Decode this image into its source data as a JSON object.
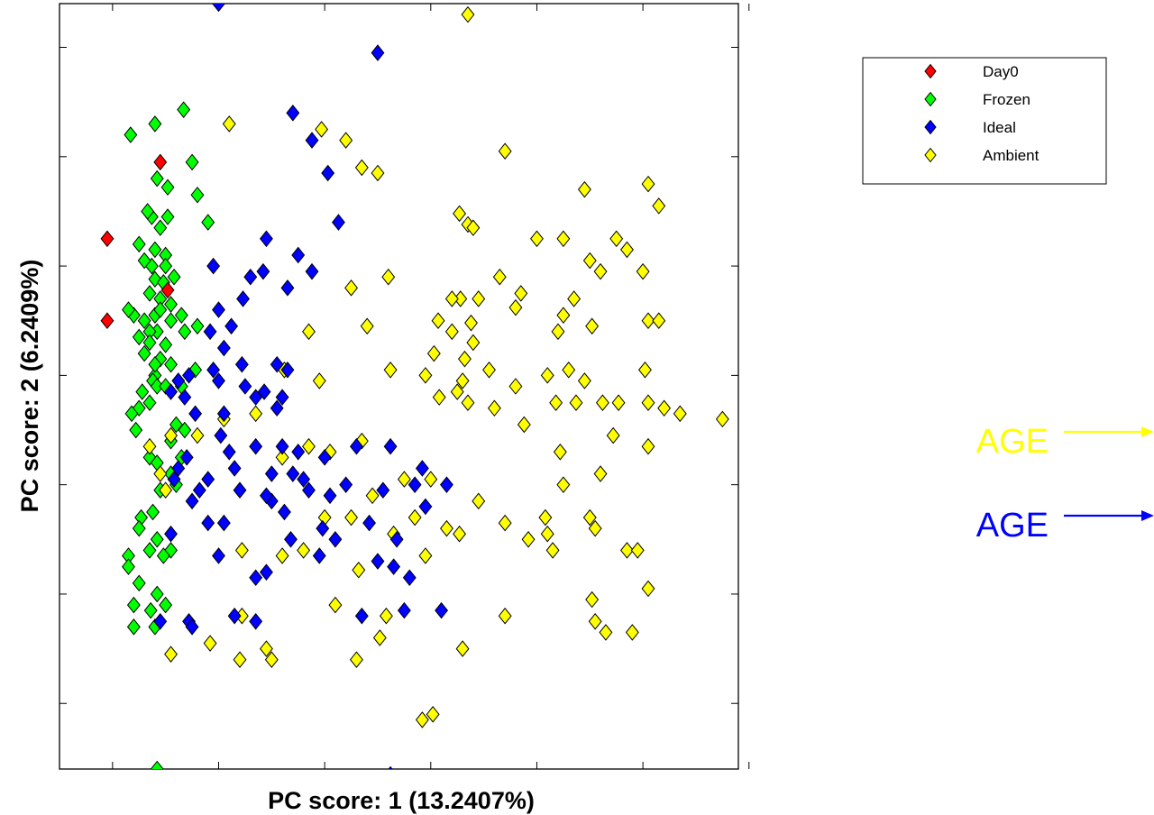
{
  "chart_data": {
    "type": "scatter",
    "title": "",
    "xlabel": "PC score: 1 (13.2407%)",
    "ylabel": "PC score: 2 (6.2409%)",
    "xlim": [
      -0.5,
      5.9
    ],
    "ylim": [
      -6.6,
      0.4
    ],
    "xticks": [
      0,
      1,
      2,
      3,
      4,
      5,
      6
    ],
    "yticks": [
      -6,
      -5,
      -4,
      -3,
      -2,
      -1,
      0
    ],
    "tick_labels_visible": false,
    "grid": false,
    "marker": "diamond",
    "legend": {
      "placement": "top-right",
      "entries": [
        "Day0",
        "Frozen",
        "Ideal",
        "Ambient"
      ]
    },
    "series": [
      {
        "name": "Day0",
        "color": "#ff0000",
        "points": [
          [
            -0.05,
            -2.5
          ],
          [
            0.45,
            -1.05
          ],
          [
            -0.05,
            -1.75
          ],
          [
            0.52,
            -2.22
          ]
        ]
      },
      {
        "name": "Frozen",
        "color": "#00ff00",
        "points": [
          [
            0.17,
            -0.8
          ],
          [
            0.4,
            -0.7
          ],
          [
            0.67,
            -0.57
          ],
          [
            0.42,
            -1.2
          ],
          [
            0.37,
            -1.55
          ],
          [
            0.52,
            -1.28
          ],
          [
            0.33,
            -1.5
          ],
          [
            0.37,
            -2.0
          ],
          [
            0.4,
            -2.12
          ],
          [
            0.45,
            -1.65
          ],
          [
            0.25,
            -1.8
          ],
          [
            0.3,
            -1.95
          ],
          [
            0.4,
            -1.85
          ],
          [
            0.5,
            -1.9
          ],
          [
            0.35,
            -2.25
          ],
          [
            0.5,
            -2.0
          ],
          [
            0.45,
            -2.3
          ],
          [
            0.3,
            -2.5
          ],
          [
            0.2,
            -2.45
          ],
          [
            0.4,
            -2.45
          ],
          [
            0.15,
            -2.4
          ],
          [
            0.55,
            -2.35
          ],
          [
            0.25,
            -2.65
          ],
          [
            0.42,
            -2.6
          ],
          [
            0.65,
            -2.45
          ],
          [
            0.35,
            -2.6
          ],
          [
            0.35,
            -2.7
          ],
          [
            0.5,
            -2.72
          ],
          [
            0.3,
            -2.8
          ],
          [
            0.45,
            -2.85
          ],
          [
            0.4,
            -3.0
          ],
          [
            0.4,
            -2.9
          ],
          [
            0.55,
            -2.9
          ],
          [
            0.38,
            -3.05
          ],
          [
            0.42,
            -3.1
          ],
          [
            0.5,
            -3.1
          ],
          [
            0.28,
            -3.15
          ],
          [
            0.35,
            -3.25
          ],
          [
            0.25,
            -3.3
          ],
          [
            0.18,
            -3.35
          ],
          [
            0.22,
            -3.5
          ],
          [
            0.6,
            -3.45
          ],
          [
            0.68,
            -3.5
          ],
          [
            0.55,
            -3.6
          ],
          [
            0.65,
            -3.1
          ],
          [
            0.35,
            -3.75
          ],
          [
            0.65,
            -3.75
          ],
          [
            0.42,
            -3.8
          ],
          [
            0.45,
            -4.05
          ],
          [
            0.55,
            -3.9
          ],
          [
            0.6,
            -4.0
          ],
          [
            0.38,
            -4.25
          ],
          [
            0.27,
            -4.3
          ],
          [
            0.25,
            -4.4
          ],
          [
            0.15,
            -4.65
          ],
          [
            0.35,
            -4.6
          ],
          [
            0.55,
            -4.6
          ],
          [
            0.42,
            -4.5
          ],
          [
            0.48,
            -4.65
          ],
          [
            0.42,
            -5.0
          ],
          [
            0.15,
            -4.75
          ],
          [
            0.25,
            -4.9
          ],
          [
            0.2,
            -5.1
          ],
          [
            0.36,
            -5.15
          ],
          [
            0.5,
            -5.1
          ],
          [
            0.2,
            -5.3
          ],
          [
            0.4,
            -5.3
          ],
          [
            0.42,
            -6.6
          ],
          [
            0.75,
            -1.05
          ],
          [
            0.8,
            -1.35
          ],
          [
            0.9,
            -1.6
          ],
          [
            0.68,
            -2.6
          ],
          [
            0.8,
            -2.55
          ],
          [
            0.78,
            -2.95
          ],
          [
            0.45,
            -2.4
          ],
          [
            0.48,
            -2.15
          ],
          [
            0.58,
            -2.1
          ],
          [
            0.52,
            -1.55
          ],
          [
            0.55,
            -2.5
          ]
        ]
      },
      {
        "name": "Ideal",
        "color": "#0000ff",
        "points": [
          [
            1.0,
            0.4
          ],
          [
            2.5,
            -0.05
          ],
          [
            1.7,
            -0.6
          ],
          [
            1.88,
            -0.85
          ],
          [
            2.03,
            -1.15
          ],
          [
            1.45,
            -1.75
          ],
          [
            1.75,
            -1.9
          ],
          [
            2.13,
            -1.6
          ],
          [
            1.88,
            -2.05
          ],
          [
            1.42,
            -2.05
          ],
          [
            0.95,
            -2.0
          ],
          [
            1.3,
            -2.1
          ],
          [
            1.65,
            -2.2
          ],
          [
            1.23,
            -2.3
          ],
          [
            1.12,
            -2.55
          ],
          [
            1.0,
            -2.4
          ],
          [
            0.92,
            -2.6
          ],
          [
            1.05,
            -2.75
          ],
          [
            1.22,
            -2.9
          ],
          [
            0.95,
            -2.95
          ],
          [
            1.0,
            -3.05
          ],
          [
            1.55,
            -2.9
          ],
          [
            1.65,
            -2.95
          ],
          [
            1.25,
            -3.1
          ],
          [
            1.43,
            -3.15
          ],
          [
            1.35,
            -3.2
          ],
          [
            1.6,
            -3.2
          ],
          [
            1.55,
            -3.3
          ],
          [
            1.05,
            -3.35
          ],
          [
            0.78,
            -3.35
          ],
          [
            0.68,
            -3.2
          ],
          [
            0.62,
            -3.05
          ],
          [
            0.72,
            -3.0
          ],
          [
            0.55,
            -3.15
          ],
          [
            1.02,
            -3.55
          ],
          [
            1.1,
            -3.7
          ],
          [
            0.7,
            -3.75
          ],
          [
            0.62,
            -3.85
          ],
          [
            0.58,
            -3.95
          ],
          [
            0.9,
            -3.95
          ],
          [
            1.15,
            -3.85
          ],
          [
            1.35,
            -3.65
          ],
          [
            1.6,
            -3.65
          ],
          [
            1.5,
            -3.9
          ],
          [
            1.75,
            -3.7
          ],
          [
            1.8,
            -3.95
          ],
          [
            2.0,
            -3.75
          ],
          [
            1.85,
            -4.05
          ],
          [
            1.5,
            -4.15
          ],
          [
            1.45,
            -4.1
          ],
          [
            1.2,
            -4.05
          ],
          [
            1.05,
            -4.35
          ],
          [
            0.82,
            -4.05
          ],
          [
            0.75,
            -4.15
          ],
          [
            0.9,
            -4.35
          ],
          [
            2.3,
            -3.65
          ],
          [
            2.62,
            -3.65
          ],
          [
            2.92,
            -3.85
          ],
          [
            1.62,
            -4.25
          ],
          [
            2.1,
            -4.5
          ],
          [
            2.2,
            -4.0
          ],
          [
            2.42,
            -4.35
          ],
          [
            2.68,
            -4.5
          ],
          [
            2.85,
            -4.0
          ],
          [
            3.15,
            -4.0
          ],
          [
            2.95,
            -4.2
          ],
          [
            2.55,
            -4.05
          ],
          [
            2.05,
            -4.1
          ],
          [
            1.98,
            -4.4
          ],
          [
            1.68,
            -4.5
          ],
          [
            1.95,
            -4.65
          ],
          [
            1.45,
            -4.8
          ],
          [
            1.35,
            -4.85
          ],
          [
            2.5,
            -4.7
          ],
          [
            2.65,
            -4.75
          ],
          [
            2.75,
            -5.15
          ],
          [
            2.8,
            -4.85
          ],
          [
            2.35,
            -5.2
          ],
          [
            1.15,
            -5.2
          ],
          [
            1.35,
            -5.25
          ],
          [
            0.72,
            -5.25
          ],
          [
            0.45,
            -5.25
          ],
          [
            0.75,
            -5.3
          ],
          [
            3.1,
            -5.15
          ],
          [
            2.62,
            -6.65
          ],
          [
            1.0,
            -4.65
          ],
          [
            0.55,
            -4.45
          ],
          [
            1.7,
            -3.9
          ]
        ]
      },
      {
        "name": "Ambient",
        "color": "#ffff00",
        "points": [
          [
            3.35,
            0.3
          ],
          [
            1.1,
            -0.7
          ],
          [
            1.97,
            -0.75
          ],
          [
            2.2,
            -0.85
          ],
          [
            3.7,
            -0.95
          ],
          [
            2.35,
            -1.1
          ],
          [
            2.5,
            -1.15
          ],
          [
            4.45,
            -1.3
          ],
          [
            5.05,
            -1.25
          ],
          [
            5.15,
            -1.45
          ],
          [
            3.27,
            -1.52
          ],
          [
            3.35,
            -1.62
          ],
          [
            3.4,
            -1.65
          ],
          [
            4.0,
            -1.75
          ],
          [
            4.25,
            -1.75
          ],
          [
            4.75,
            -1.75
          ],
          [
            4.85,
            -1.85
          ],
          [
            4.5,
            -1.95
          ],
          [
            4.6,
            -2.05
          ],
          [
            5.0,
            -2.05
          ],
          [
            3.65,
            -2.1
          ],
          [
            2.6,
            -2.1
          ],
          [
            2.25,
            -2.2
          ],
          [
            3.45,
            -2.3
          ],
          [
            3.85,
            -2.25
          ],
          [
            3.28,
            -2.3
          ],
          [
            3.8,
            -2.38
          ],
          [
            4.35,
            -2.3
          ],
          [
            4.25,
            -2.45
          ],
          [
            4.2,
            -2.6
          ],
          [
            4.52,
            -2.55
          ],
          [
            5.05,
            -2.5
          ],
          [
            5.15,
            -2.5
          ],
          [
            3.2,
            -2.3
          ],
          [
            3.07,
            -2.5
          ],
          [
            3.2,
            -2.6
          ],
          [
            3.03,
            -2.8
          ],
          [
            3.32,
            -2.85
          ],
          [
            3.55,
            -2.95
          ],
          [
            3.3,
            -3.05
          ],
          [
            3.25,
            -3.15
          ],
          [
            3.35,
            -3.25
          ],
          [
            3.08,
            -3.2
          ],
          [
            3.6,
            -3.3
          ],
          [
            3.8,
            -3.1
          ],
          [
            4.1,
            -3.0
          ],
          [
            4.3,
            -2.95
          ],
          [
            4.18,
            -3.25
          ],
          [
            4.37,
            -3.25
          ],
          [
            4.45,
            -3.05
          ],
          [
            4.62,
            -3.25
          ],
          [
            4.77,
            -3.25
          ],
          [
            5.05,
            -3.25
          ],
          [
            5.02,
            -2.95
          ],
          [
            4.72,
            -3.55
          ],
          [
            5.05,
            -3.65
          ],
          [
            5.2,
            -3.3
          ],
          [
            5.35,
            -3.35
          ],
          [
            5.75,
            -3.4
          ],
          [
            4.22,
            -3.7
          ],
          [
            4.6,
            -3.9
          ],
          [
            4.25,
            -4.0
          ],
          [
            4.08,
            -4.3
          ],
          [
            4.1,
            -4.45
          ],
          [
            4.15,
            -4.6
          ],
          [
            4.5,
            -4.3
          ],
          [
            4.55,
            -4.4
          ],
          [
            4.85,
            -4.6
          ],
          [
            5.05,
            -4.95
          ],
          [
            4.95,
            -4.6
          ],
          [
            4.52,
            -5.05
          ],
          [
            4.55,
            -5.25
          ],
          [
            4.65,
            -5.35
          ],
          [
            4.9,
            -5.35
          ],
          [
            3.88,
            -3.45
          ],
          [
            3.45,
            -4.15
          ],
          [
            3.7,
            -4.35
          ],
          [
            3.92,
            -4.5
          ],
          [
            2.85,
            -4.3
          ],
          [
            3.27,
            -4.45
          ],
          [
            3.15,
            -4.4
          ],
          [
            2.65,
            -4.45
          ],
          [
            2.95,
            -4.65
          ],
          [
            2.58,
            -5.2
          ],
          [
            2.52,
            -5.4
          ],
          [
            2.3,
            -5.6
          ],
          [
            3.02,
            -6.1
          ],
          [
            2.92,
            -6.15
          ],
          [
            3.7,
            -5.2
          ],
          [
            3.3,
            -5.5
          ],
          [
            1.22,
            -5.2
          ],
          [
            1.5,
            -5.6
          ],
          [
            2.1,
            -5.1
          ],
          [
            2.32,
            -4.78
          ],
          [
            1.22,
            -4.6
          ],
          [
            1.6,
            -4.65
          ],
          [
            1.8,
            -4.6
          ],
          [
            2.0,
            -4.3
          ],
          [
            2.25,
            -4.3
          ],
          [
            2.45,
            -4.1
          ],
          [
            2.75,
            -3.95
          ],
          [
            3.0,
            -3.95
          ],
          [
            2.35,
            -3.6
          ],
          [
            2.05,
            -3.7
          ],
          [
            1.6,
            -3.75
          ],
          [
            1.35,
            -3.35
          ],
          [
            1.05,
            -3.4
          ],
          [
            0.8,
            -3.55
          ],
          [
            0.55,
            -3.55
          ],
          [
            0.35,
            -3.65
          ],
          [
            0.45,
            -3.9
          ],
          [
            0.5,
            -4.05
          ],
          [
            1.85,
            -3.65
          ],
          [
            1.95,
            -3.05
          ],
          [
            1.62,
            -2.95
          ],
          [
            1.85,
            -2.6
          ],
          [
            2.4,
            -2.55
          ],
          [
            2.62,
            -2.95
          ],
          [
            2.95,
            -3.0
          ],
          [
            3.4,
            -2.7
          ],
          [
            3.38,
            -2.52
          ],
          [
            1.2,
            -5.6
          ],
          [
            1.45,
            -5.5
          ],
          [
            0.92,
            -5.45
          ],
          [
            0.55,
            -5.55
          ]
        ]
      }
    ],
    "annotations": [
      {
        "text": "AGE",
        "color": "#ffff00",
        "arrow": "right"
      },
      {
        "text": "AGE",
        "color": "#0000ff",
        "arrow": "right"
      }
    ]
  }
}
